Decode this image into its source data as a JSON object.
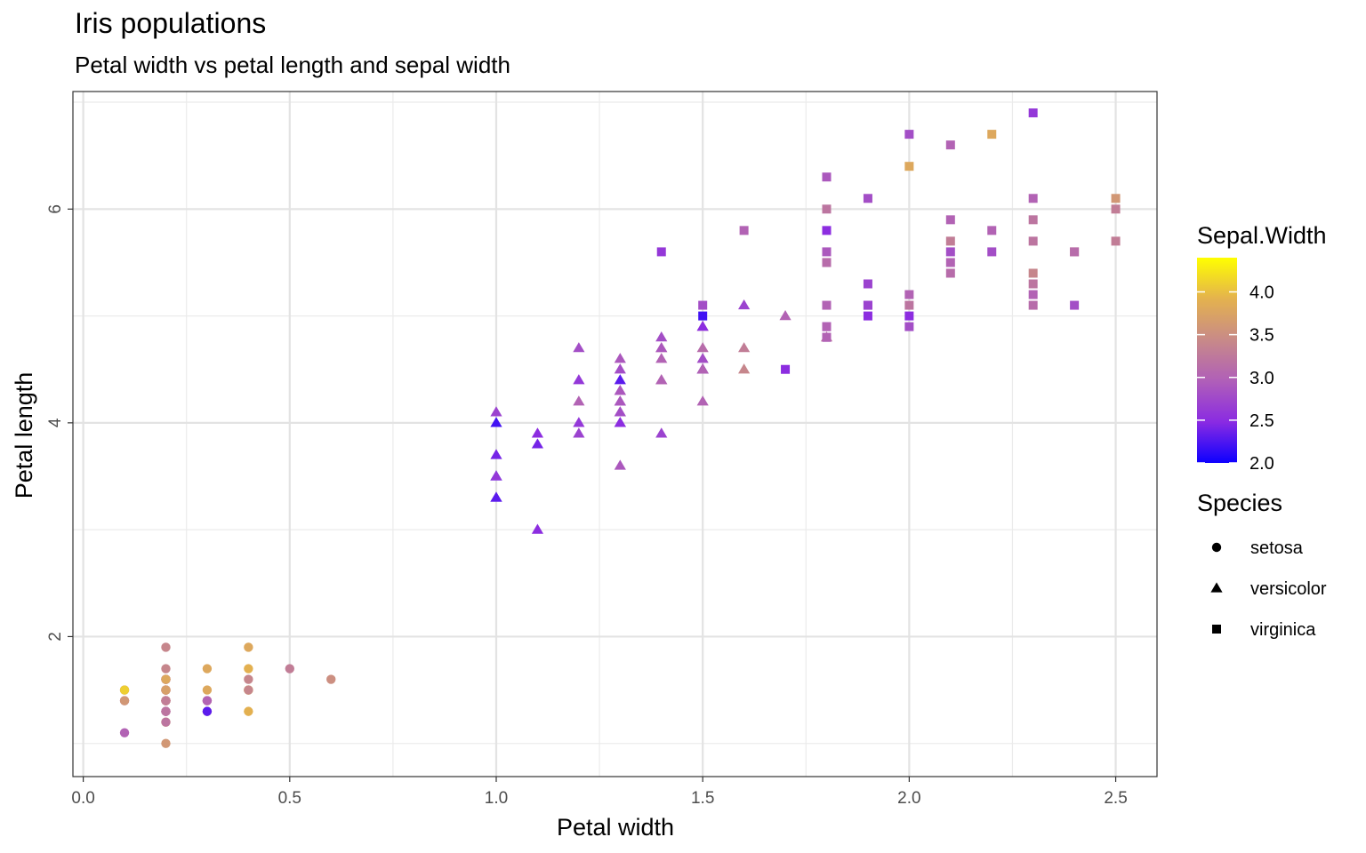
{
  "title": "Iris populations",
  "subtitle": "Petal width vs petal length and sepal width",
  "chart_data": {
    "type": "scatter",
    "title": "Iris populations",
    "subtitle": "Petal width vs petal length and sepal width",
    "xlabel": "Petal width",
    "ylabel": "Petal length",
    "xlim": [
      -0.025,
      2.6
    ],
    "ylim": [
      0.69,
      7.1
    ],
    "x_ticks": [
      0.0,
      0.5,
      1.0,
      1.5,
      2.0,
      2.5
    ],
    "x_tick_labels": [
      "0.0",
      "0.5",
      "1.0",
      "1.5",
      "2.0",
      "2.5"
    ],
    "y_ticks": [
      2,
      4,
      6
    ],
    "y_tick_labels": [
      "2",
      "4",
      "6"
    ],
    "grid": true,
    "theme": "bw",
    "color_legend": {
      "title": "Sepal.Width",
      "range": [
        2.0,
        4.4
      ],
      "ticks": [
        4.0,
        3.5,
        3.0,
        2.5,
        2.0
      ],
      "tick_labels": [
        "4.0",
        "3.5",
        "3.0",
        "2.5",
        "2.0"
      ],
      "colors": [
        "#0d00ff",
        "#8a2be2",
        "#b05fb8",
        "#c88a88",
        "#e4b24e",
        "#ffff00"
      ]
    },
    "shape_legend": {
      "title": "Species",
      "entries": [
        {
          "label": "setosa",
          "shape": "circle"
        },
        {
          "label": "versicolor",
          "shape": "triangle"
        },
        {
          "label": "virginica",
          "shape": "square"
        }
      ]
    },
    "legend_position": "right",
    "series": [
      {
        "name": "setosa",
        "shape": "circle",
        "points": [
          [
            0.2,
            1.4,
            3.5
          ],
          [
            0.2,
            1.4,
            3.0
          ],
          [
            0.2,
            1.3,
            3.2
          ],
          [
            0.2,
            1.5,
            3.1
          ],
          [
            0.2,
            1.4,
            3.6
          ],
          [
            0.4,
            1.7,
            3.9
          ],
          [
            0.3,
            1.4,
            3.4
          ],
          [
            0.2,
            1.5,
            3.4
          ],
          [
            0.2,
            1.4,
            2.9
          ],
          [
            0.1,
            1.5,
            3.1
          ],
          [
            0.2,
            1.5,
            3.7
          ],
          [
            0.2,
            1.6,
            3.4
          ],
          [
            0.1,
            1.4,
            3.0
          ],
          [
            0.1,
            1.1,
            3.0
          ],
          [
            0.2,
            1.2,
            4.0
          ],
          [
            0.4,
            1.5,
            4.4
          ],
          [
            0.4,
            1.3,
            3.9
          ],
          [
            0.3,
            1.4,
            3.5
          ],
          [
            0.3,
            1.7,
            3.8
          ],
          [
            0.3,
            1.5,
            3.8
          ],
          [
            0.2,
            1.7,
            3.4
          ],
          [
            0.4,
            1.5,
            3.7
          ],
          [
            0.2,
            1.0,
            3.6
          ],
          [
            0.5,
            1.7,
            3.3
          ],
          [
            0.2,
            1.9,
            3.4
          ],
          [
            0.2,
            1.6,
            3.0
          ],
          [
            0.4,
            1.6,
            3.4
          ],
          [
            0.2,
            1.5,
            3.5
          ],
          [
            0.2,
            1.4,
            3.4
          ],
          [
            0.2,
            1.6,
            3.2
          ],
          [
            0.2,
            1.6,
            3.1
          ],
          [
            0.4,
            1.5,
            3.4
          ],
          [
            0.1,
            1.5,
            4.1
          ],
          [
            0.2,
            1.4,
            4.2
          ],
          [
            0.2,
            1.5,
            3.1
          ],
          [
            0.2,
            1.2,
            3.2
          ],
          [
            0.2,
            1.3,
            3.5
          ],
          [
            0.1,
            1.4,
            3.6
          ],
          [
            0.2,
            1.3,
            3.0
          ],
          [
            0.2,
            1.5,
            3.4
          ],
          [
            0.3,
            1.3,
            3.5
          ],
          [
            0.3,
            1.3,
            2.3
          ],
          [
            0.2,
            1.3,
            3.2
          ],
          [
            0.6,
            1.6,
            3.5
          ],
          [
            0.4,
            1.9,
            3.8
          ],
          [
            0.3,
            1.4,
            3.0
          ],
          [
            0.2,
            1.6,
            3.8
          ],
          [
            0.2,
            1.4,
            3.2
          ],
          [
            0.2,
            1.5,
            3.7
          ],
          [
            0.2,
            1.4,
            3.3
          ]
        ]
      },
      {
        "name": "versicolor",
        "shape": "triangle",
        "points": [
          [
            1.4,
            4.7,
            3.2
          ],
          [
            1.5,
            4.5,
            3.2
          ],
          [
            1.5,
            4.9,
            3.1
          ],
          [
            1.3,
            4.0,
            2.3
          ],
          [
            1.5,
            4.6,
            2.8
          ],
          [
            1.3,
            4.5,
            2.8
          ],
          [
            1.6,
            4.7,
            3.3
          ],
          [
            1.0,
            3.3,
            2.4
          ],
          [
            1.3,
            4.6,
            2.9
          ],
          [
            1.4,
            3.9,
            2.7
          ],
          [
            1.0,
            3.5,
            2.0
          ],
          [
            1.5,
            4.2,
            3.0
          ],
          [
            1.0,
            4.0,
            2.2
          ],
          [
            1.4,
            4.7,
            2.9
          ],
          [
            1.3,
            3.6,
            2.9
          ],
          [
            1.4,
            4.4,
            3.1
          ],
          [
            1.5,
            4.5,
            3.0
          ],
          [
            1.0,
            4.1,
            2.7
          ],
          [
            1.5,
            4.5,
            2.2
          ],
          [
            1.1,
            3.9,
            2.5
          ],
          [
            1.8,
            4.8,
            3.2
          ],
          [
            1.3,
            4.0,
            2.8
          ],
          [
            1.5,
            4.9,
            2.5
          ],
          [
            1.2,
            4.7,
            2.8
          ],
          [
            1.3,
            4.3,
            2.9
          ],
          [
            1.4,
            4.4,
            3.0
          ],
          [
            1.4,
            4.8,
            2.8
          ],
          [
            1.7,
            5.0,
            3.0
          ],
          [
            1.5,
            4.5,
            2.9
          ],
          [
            1.0,
            3.5,
            2.6
          ],
          [
            1.1,
            3.8,
            2.4
          ],
          [
            1.0,
            3.7,
            2.4
          ],
          [
            1.2,
            3.9,
            2.7
          ],
          [
            1.6,
            5.1,
            2.7
          ],
          [
            1.5,
            4.5,
            3.0
          ],
          [
            1.6,
            4.5,
            3.4
          ],
          [
            1.5,
            4.7,
            3.1
          ],
          [
            1.3,
            4.4,
            2.3
          ],
          [
            1.3,
            4.1,
            3.0
          ],
          [
            1.3,
            4.0,
            2.5
          ],
          [
            1.2,
            4.4,
            2.6
          ],
          [
            1.4,
            4.6,
            3.0
          ],
          [
            1.2,
            4.0,
            2.6
          ],
          [
            1.0,
            3.3,
            2.3
          ],
          [
            1.3,
            4.2,
            2.7
          ],
          [
            1.2,
            4.2,
            3.0
          ],
          [
            1.3,
            4.2,
            2.9
          ],
          [
            1.3,
            4.3,
            2.9
          ],
          [
            1.1,
            3.0,
            2.5
          ],
          [
            1.3,
            4.1,
            2.8
          ]
        ]
      },
      {
        "name": "virginica",
        "shape": "square",
        "points": [
          [
            2.5,
            6.0,
            3.3
          ],
          [
            1.9,
            5.1,
            2.7
          ],
          [
            2.1,
            5.9,
            3.0
          ],
          [
            1.8,
            5.6,
            2.9
          ],
          [
            2.2,
            5.8,
            3.0
          ],
          [
            2.1,
            6.6,
            3.0
          ],
          [
            1.7,
            4.5,
            2.5
          ],
          [
            1.8,
            6.3,
            2.9
          ],
          [
            1.8,
            5.8,
            2.5
          ],
          [
            2.5,
            6.1,
            3.6
          ],
          [
            2.0,
            5.1,
            3.2
          ],
          [
            1.9,
            5.3,
            2.7
          ],
          [
            2.1,
            5.5,
            3.0
          ],
          [
            2.0,
            5.0,
            2.5
          ],
          [
            2.4,
            5.1,
            2.8
          ],
          [
            2.3,
            5.3,
            3.2
          ],
          [
            1.8,
            5.5,
            3.0
          ],
          [
            2.2,
            6.7,
            3.8
          ],
          [
            2.3,
            6.9,
            2.6
          ],
          [
            1.5,
            5.0,
            2.2
          ],
          [
            2.3,
            5.7,
            3.2
          ],
          [
            2.0,
            4.9,
            2.8
          ],
          [
            2.0,
            6.7,
            2.8
          ],
          [
            1.8,
            4.9,
            2.7
          ],
          [
            2.1,
            5.7,
            3.3
          ],
          [
            1.8,
            6.0,
            3.2
          ],
          [
            1.8,
            4.8,
            2.8
          ],
          [
            1.8,
            4.9,
            3.0
          ],
          [
            2.1,
            5.6,
            2.8
          ],
          [
            1.6,
            5.8,
            3.0
          ],
          [
            1.9,
            6.1,
            2.8
          ],
          [
            2.0,
            6.4,
            3.8
          ],
          [
            2.2,
            5.6,
            2.8
          ],
          [
            1.5,
            5.1,
            2.8
          ],
          [
            1.4,
            5.6,
            2.6
          ],
          [
            2.3,
            6.1,
            3.0
          ],
          [
            2.4,
            5.6,
            3.4
          ],
          [
            1.8,
            5.5,
            3.1
          ],
          [
            1.8,
            4.8,
            3.0
          ],
          [
            2.1,
            5.4,
            3.1
          ],
          [
            2.4,
            5.6,
            3.1
          ],
          [
            2.3,
            5.1,
            3.1
          ],
          [
            1.9,
            5.1,
            2.7
          ],
          [
            2.3,
            5.9,
            3.2
          ],
          [
            2.5,
            5.7,
            3.3
          ],
          [
            2.3,
            5.2,
            3.0
          ],
          [
            1.9,
            5.0,
            2.5
          ],
          [
            2.0,
            5.2,
            3.0
          ],
          [
            2.3,
            5.4,
            3.4
          ],
          [
            1.8,
            5.1,
            3.0
          ]
        ]
      }
    ]
  }
}
